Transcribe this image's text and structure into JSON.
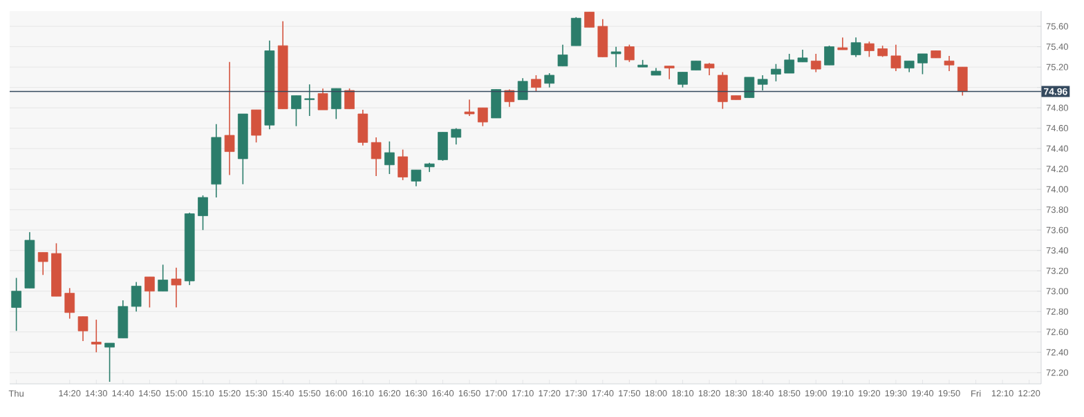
{
  "chart_data": {
    "type": "candlestick",
    "categories": [
      "Thu",
      null,
      null,
      null,
      "14:20",
      null,
      "14:30",
      null,
      "14:40",
      null,
      "14:50",
      null,
      "15:00",
      null,
      "15:10",
      null,
      "15:20",
      null,
      "15:30",
      null,
      "15:40",
      null,
      "15:50",
      null,
      "16:00",
      null,
      "16:10",
      null,
      "16:20",
      null,
      "16:30",
      null,
      "16:40",
      null,
      "16:50",
      null,
      "17:00",
      null,
      "17:10",
      null,
      "17:20",
      null,
      "17:30",
      null,
      "17:40",
      null,
      "17:50",
      null,
      "18:00",
      null,
      "18:10",
      null,
      "18:20",
      null,
      "18:30",
      null,
      "18:40",
      null,
      "18:50",
      null,
      "19:00",
      null,
      "19:10",
      null,
      "19:20",
      null,
      "19:30",
      null,
      "19:40",
      null,
      "19:50",
      null,
      "Fri",
      null,
      "12:10",
      null,
      "12:20"
    ],
    "ohlc": [
      [
        72.84,
        73.13,
        72.61,
        73.0
      ],
      [
        73.03,
        73.58,
        73.03,
        73.5
      ],
      [
        73.38,
        73.38,
        73.16,
        73.29
      ],
      [
        73.37,
        73.47,
        72.95,
        72.95
      ],
      [
        72.98,
        73.03,
        72.73,
        72.79
      ],
      [
        72.75,
        72.75,
        72.51,
        72.61
      ],
      [
        72.5,
        72.72,
        72.4,
        72.48
      ],
      [
        72.45,
        72.49,
        72.11,
        72.49
      ],
      [
        72.54,
        72.91,
        72.54,
        72.85
      ],
      [
        72.85,
        73.09,
        72.8,
        73.05
      ],
      [
        73.14,
        73.14,
        72.84,
        73.0
      ],
      [
        73.0,
        73.26,
        73.0,
        73.11
      ],
      [
        73.12,
        73.23,
        72.84,
        73.06
      ],
      [
        73.1,
        73.77,
        73.06,
        73.76
      ],
      [
        73.74,
        73.94,
        73.6,
        73.92
      ],
      [
        74.05,
        74.64,
        73.92,
        74.51
      ],
      [
        74.53,
        75.25,
        74.14,
        74.37
      ],
      [
        74.3,
        74.74,
        74.05,
        74.74
      ],
      [
        74.78,
        74.78,
        74.46,
        74.53
      ],
      [
        74.63,
        75.46,
        74.59,
        75.36
      ],
      [
        75.41,
        75.65,
        74.79,
        74.79
      ],
      [
        74.79,
        74.92,
        74.62,
        74.92
      ],
      [
        74.88,
        75.03,
        74.72,
        74.89
      ],
      [
        74.94,
        74.99,
        74.78,
        74.78
      ],
      [
        74.79,
        74.99,
        74.69,
        74.99
      ],
      [
        74.97,
        74.99,
        74.79,
        74.79
      ],
      [
        74.74,
        74.78,
        74.43,
        74.46
      ],
      [
        74.46,
        74.51,
        74.13,
        74.3
      ],
      [
        74.24,
        74.47,
        74.15,
        74.36
      ],
      [
        74.32,
        74.39,
        74.09,
        74.12
      ],
      [
        74.08,
        74.19,
        74.03,
        74.19
      ],
      [
        74.22,
        74.26,
        74.17,
        74.25
      ],
      [
        74.29,
        74.56,
        74.28,
        74.56
      ],
      [
        74.51,
        74.6,
        74.44,
        74.59
      ],
      [
        74.76,
        74.88,
        74.72,
        74.74
      ],
      [
        74.8,
        74.8,
        74.62,
        74.66
      ],
      [
        74.7,
        74.98,
        74.7,
        74.98
      ],
      [
        74.97,
        74.98,
        74.81,
        74.86
      ],
      [
        74.88,
        75.09,
        74.88,
        75.06
      ],
      [
        75.08,
        75.12,
        74.96,
        75.0
      ],
      [
        75.04,
        75.14,
        75.0,
        75.12
      ],
      [
        75.21,
        75.42,
        75.21,
        75.32
      ],
      [
        75.41,
        75.69,
        75.41,
        75.68
      ],
      [
        75.74,
        75.74,
        75.59,
        75.59
      ],
      [
        75.6,
        75.67,
        75.3,
        75.3
      ],
      [
        75.33,
        75.4,
        75.2,
        75.35
      ],
      [
        75.4,
        75.42,
        75.25,
        75.27
      ],
      [
        75.2,
        75.27,
        75.2,
        75.22
      ],
      [
        75.12,
        75.19,
        75.12,
        75.16
      ],
      [
        75.21,
        75.21,
        75.08,
        75.19
      ],
      [
        75.03,
        75.15,
        75.0,
        75.15
      ],
      [
        75.17,
        75.26,
        75.17,
        75.26
      ],
      [
        75.23,
        75.24,
        75.12,
        75.19
      ],
      [
        75.12,
        75.15,
        74.79,
        74.86
      ],
      [
        74.92,
        74.92,
        74.88,
        74.88
      ],
      [
        74.9,
        75.1,
        74.9,
        75.1
      ],
      [
        75.03,
        75.12,
        74.97,
        75.08
      ],
      [
        75.13,
        75.23,
        75.06,
        75.18
      ],
      [
        75.14,
        75.33,
        75.14,
        75.27
      ],
      [
        75.25,
        75.37,
        75.25,
        75.29
      ],
      [
        75.26,
        75.33,
        75.15,
        75.18
      ],
      [
        75.22,
        75.41,
        75.22,
        75.4
      ],
      [
        75.39,
        75.49,
        75.37,
        75.37
      ],
      [
        75.32,
        75.49,
        75.3,
        75.44
      ],
      [
        75.43,
        75.45,
        75.3,
        75.36
      ],
      [
        75.38,
        75.41,
        75.3,
        75.31
      ],
      [
        75.31,
        75.42,
        75.16,
        75.19
      ],
      [
        75.19,
        75.26,
        75.15,
        75.26
      ],
      [
        75.24,
        75.33,
        75.13,
        75.33
      ],
      [
        75.36,
        75.36,
        75.29,
        75.29
      ],
      [
        75.26,
        75.31,
        75.16,
        75.22
      ],
      [
        75.2,
        75.2,
        74.92,
        74.96
      ],
      null,
      null,
      null,
      null,
      null
    ],
    "colors": [
      "#2b7d6b",
      "#2b7d6b",
      "#d4533e",
      "#d4533e",
      "#d4533e",
      "#d4533e",
      "#d4533e",
      "#2b7d6b",
      "#2b7d6b",
      "#2b7d6b",
      "#d4533e",
      "#2b7d6b",
      "#d4533e",
      "#2b7d6b",
      "#2b7d6b",
      "#2b7d6b",
      "#d4533e",
      "#2b7d6b",
      "#d4533e",
      "#2b7d6b",
      "#d4533e",
      "#2b7d6b",
      "#2b7d6b",
      "#d4533e",
      "#2b7d6b",
      "#d4533e",
      "#d4533e",
      "#d4533e",
      "#2b7d6b",
      "#d4533e",
      "#2b7d6b",
      "#2b7d6b",
      "#2b7d6b",
      "#2b7d6b",
      "#d4533e",
      "#d4533e",
      "#2b7d6b",
      "#d4533e",
      "#2b7d6b",
      "#d4533e",
      "#2b7d6b",
      "#2b7d6b",
      "#2b7d6b",
      "#d4533e",
      "#d4533e",
      "#2b7d6b",
      "#d4533e",
      "#2b7d6b",
      "#2b7d6b",
      "#d4533e",
      "#2b7d6b",
      "#2b7d6b",
      "#d4533e",
      "#d4533e",
      "#d4533e",
      "#2b7d6b",
      "#2b7d6b",
      "#2b7d6b",
      "#2b7d6b",
      "#2b7d6b",
      "#d4533e",
      "#2b7d6b",
      "#d4533e",
      "#2b7d6b",
      "#d4533e",
      "#d4533e",
      "#d4533e",
      "#2b7d6b",
      "#2b7d6b",
      "#d4533e",
      "#d4533e",
      "#d4533e",
      null,
      null,
      null,
      null,
      null
    ],
    "ylim": [
      72.09,
      75.75
    ],
    "yticks": [
      {
        "value": 72.2,
        "label": "72.20"
      },
      {
        "value": 72.4,
        "label": "72.40"
      },
      {
        "value": 72.6,
        "label": "72.60"
      },
      {
        "value": 72.8,
        "label": "72.80"
      },
      {
        "value": 73.0,
        "label": "73.00"
      },
      {
        "value": 73.2,
        "label": "73.20"
      },
      {
        "value": 73.4,
        "label": "73.40"
      },
      {
        "value": 73.6,
        "label": "73.60"
      },
      {
        "value": 73.8,
        "label": "73.80"
      },
      {
        "value": 74.0,
        "label": "74.00"
      },
      {
        "value": 74.2,
        "label": "74.20"
      },
      {
        "value": 74.4,
        "label": "74.40"
      },
      {
        "value": 74.6,
        "label": "74.60"
      },
      {
        "value": 74.8,
        "label": "74.80"
      },
      {
        "value": 75.0,
        "label": null
      },
      {
        "value": 75.2,
        "label": "75.20"
      },
      {
        "value": 75.4,
        "label": "75.40"
      },
      {
        "value": 75.6,
        "label": "75.60"
      }
    ],
    "grid": "y",
    "ref_lines": [
      {
        "axis": "y",
        "value": 74.96,
        "label": "74.96",
        "color": "#34495e"
      }
    ]
  }
}
